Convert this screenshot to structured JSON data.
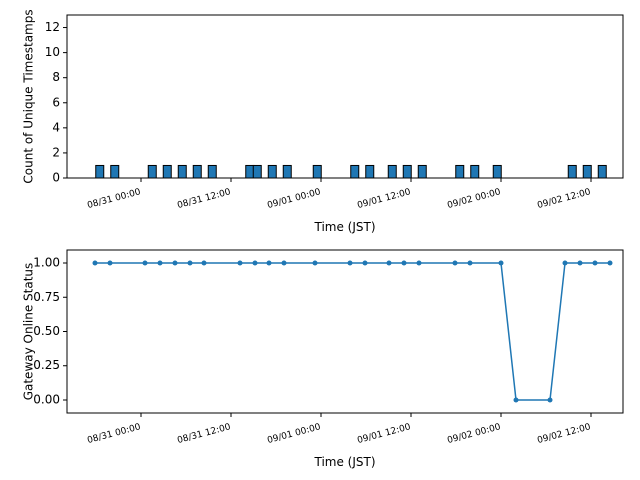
{
  "chart_data": [
    {
      "type": "bar",
      "color": "#1f77b4",
      "edgecolor": "#000000",
      "xlabel": "Time (JST)",
      "ylabel": "Count of Unique Timestamps",
      "x": [
        "08/30 18:30",
        "08/30 20:30",
        "08/31 01:30",
        "08/31 03:30",
        "08/31 05:30",
        "08/31 07:30",
        "08/31 09:30",
        "08/31 14:30",
        "08/31 15:30",
        "08/31 17:30",
        "08/31 19:30",
        "08/31 23:30",
        "09/01 04:30",
        "09/01 06:30",
        "09/01 09:30",
        "09/01 11:30",
        "09/01 13:30",
        "09/01 18:30",
        "09/01 20:30",
        "09/01 23:30",
        "09/02 09:30",
        "09/02 11:30",
        "09/02 13:30"
      ],
      "values": [
        1,
        1,
        1,
        1,
        1,
        1,
        1,
        1,
        1,
        1,
        1,
        1,
        1,
        1,
        1,
        1,
        1,
        1,
        1,
        1,
        1,
        1,
        1
      ],
      "xlim": [
        "08/30 14:08",
        "09/02 16:16"
      ],
      "xticks": [
        "08/31 00:00",
        "08/31 12:00",
        "09/01 00:00",
        "09/01 12:00",
        "09/02 00:00",
        "09/02 12:00"
      ],
      "ylim": [
        0,
        13
      ],
      "yticks": [
        0,
        2,
        4,
        6,
        8,
        10,
        12
      ]
    },
    {
      "type": "line",
      "color": "#1f77b4",
      "xlabel": "Time (JST)",
      "ylabel": "Gateway Online Status",
      "x": [
        "08/30 17:52",
        "08/30 19:52",
        "08/31 00:32",
        "08/31 02:32",
        "08/31 04:32",
        "08/31 06:32",
        "08/31 08:24",
        "08/31 13:12",
        "08/31 15:12",
        "08/31 17:04",
        "08/31 19:04",
        "08/31 23:12",
        "09/01 03:52",
        "09/01 05:52",
        "09/01 09:04",
        "09/01 11:04",
        "09/01 13:04",
        "09/01 17:52",
        "09/01 19:52",
        "09/02 00:00",
        "09/02 02:00",
        "09/02 06:32",
        "09/02 08:32",
        "09/02 10:32",
        "09/02 12:32",
        "09/02 14:32"
      ],
      "values": [
        1,
        1,
        1,
        1,
        1,
        1,
        1,
        1,
        1,
        1,
        1,
        1,
        1,
        1,
        1,
        1,
        1,
        1,
        1,
        1,
        0,
        0,
        1,
        1,
        1,
        1
      ],
      "xlim": [
        "08/30 14:08",
        "09/02 16:16"
      ],
      "xticks": [
        "08/31 00:00",
        "08/31 12:00",
        "09/01 00:00",
        "09/01 12:00",
        "09/02 00:00",
        "09/02 12:00"
      ],
      "ylim": [
        -0.095,
        1.095
      ],
      "yticks": [
        {
          "value": 0,
          "label": "0.00"
        },
        {
          "value": 0.25,
          "label": "0.25"
        },
        {
          "value": 0.5,
          "label": "0.50"
        },
        {
          "value": 0.75,
          "label": "0.75"
        },
        {
          "value": 1,
          "label": "1.00"
        }
      ]
    }
  ]
}
